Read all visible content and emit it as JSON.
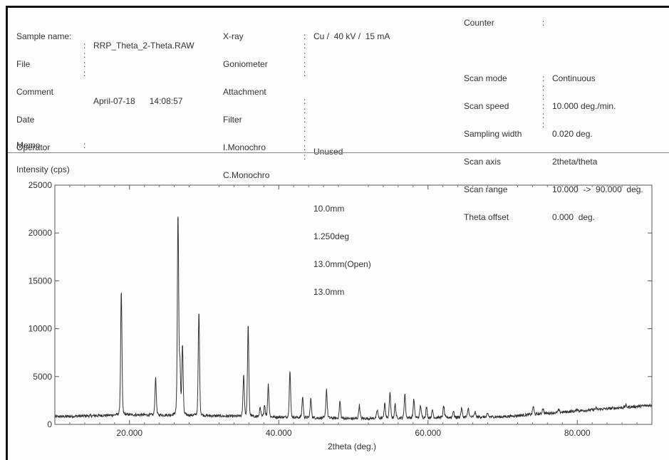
{
  "header": {
    "col1": [
      {
        "label": "Sample name",
        "value": ""
      },
      {
        "label": "File",
        "value": "RRP_Theta_2-Theta.RAW"
      },
      {
        "label": "Comment",
        "value": ""
      },
      {
        "label": "Date",
        "value": "April-07-18",
        "time": "14:08:57"
      },
      {
        "label": "Operator",
        "value": ""
      }
    ],
    "memo_label": "Memo",
    "col2": [
      "X-ray",
      "Goniometer",
      "Attachment",
      "Filter",
      "I.Monochro",
      "C.Monochro"
    ],
    "col3": [
      "Cu /  40 kV /  15 mA",
      "",
      "",
      "",
      "Unused",
      "",
      "10.0mm",
      "1.250deg",
      "13.0mm(Open)",
      "13.0mm"
    ],
    "counter_label": "Counter",
    "col4": [
      "Scan mode",
      "Scan speed",
      "Sampling width",
      "Scan axis",
      "Scan range",
      "Theta offset"
    ],
    "col5": [
      "Continuous",
      "10.000 deg./min.",
      "0.020 deg.",
      "2theta/theta",
      "10.000  ->  90.000  deg.",
      "0.000  deg."
    ]
  },
  "chart_data": {
    "type": "line",
    "ylabel": "Intensity (cps)",
    "xlabel": "2theta (deg.)",
    "xlim": [
      10,
      90
    ],
    "ylim": [
      0,
      25000
    ],
    "xticks": [
      20,
      40,
      60,
      80
    ],
    "xtick_labels": [
      "20.000",
      "40.000",
      "60.000",
      "80.000"
    ],
    "yticks": [
      0,
      5000,
      10000,
      15000,
      20000,
      25000
    ],
    "ytick_labels": [
      "0",
      "5000",
      "10000",
      "15000",
      "20000",
      "25000"
    ],
    "baseline": [
      [
        10,
        800
      ],
      [
        20,
        1000
      ],
      [
        30,
        900
      ],
      [
        50,
        600
      ],
      [
        70,
        800
      ],
      [
        90,
        2000
      ]
    ],
    "peaks": [
      {
        "x": 18.9,
        "y": 14000
      },
      {
        "x": 23.5,
        "y": 4900
      },
      {
        "x": 26.5,
        "y": 22000
      },
      {
        "x": 26.75,
        "y": 6000
      },
      {
        "x": 27.1,
        "y": 8200
      },
      {
        "x": 29.3,
        "y": 11800
      },
      {
        "x": 35.3,
        "y": 5200
      },
      {
        "x": 35.9,
        "y": 10400
      },
      {
        "x": 37.5,
        "y": 1700
      },
      {
        "x": 38.1,
        "y": 2000
      },
      {
        "x": 38.6,
        "y": 4200
      },
      {
        "x": 41.5,
        "y": 5600
      },
      {
        "x": 43.2,
        "y": 2900
      },
      {
        "x": 44.3,
        "y": 2700
      },
      {
        "x": 46.4,
        "y": 3700
      },
      {
        "x": 48.2,
        "y": 2400
      },
      {
        "x": 50.8,
        "y": 2000
      },
      {
        "x": 53.2,
        "y": 1500
      },
      {
        "x": 54.2,
        "y": 2200
      },
      {
        "x": 54.9,
        "y": 3300
      },
      {
        "x": 55.6,
        "y": 2100
      },
      {
        "x": 56.9,
        "y": 3200
      },
      {
        "x": 58.1,
        "y": 2600
      },
      {
        "x": 59.0,
        "y": 2000
      },
      {
        "x": 59.8,
        "y": 1800
      },
      {
        "x": 60.6,
        "y": 1500
      },
      {
        "x": 62.1,
        "y": 1900
      },
      {
        "x": 63.4,
        "y": 1400
      },
      {
        "x": 64.5,
        "y": 1700
      },
      {
        "x": 65.4,
        "y": 1700
      },
      {
        "x": 66.3,
        "y": 1300
      },
      {
        "x": 68.0,
        "y": 1100
      },
      {
        "x": 74.1,
        "y": 1900
      },
      {
        "x": 75.4,
        "y": 1700
      },
      {
        "x": 77.5,
        "y": 1500
      },
      {
        "x": 80.0,
        "y": 1600
      },
      {
        "x": 82.5,
        "y": 1700
      },
      {
        "x": 86.5,
        "y": 2000
      }
    ]
  }
}
